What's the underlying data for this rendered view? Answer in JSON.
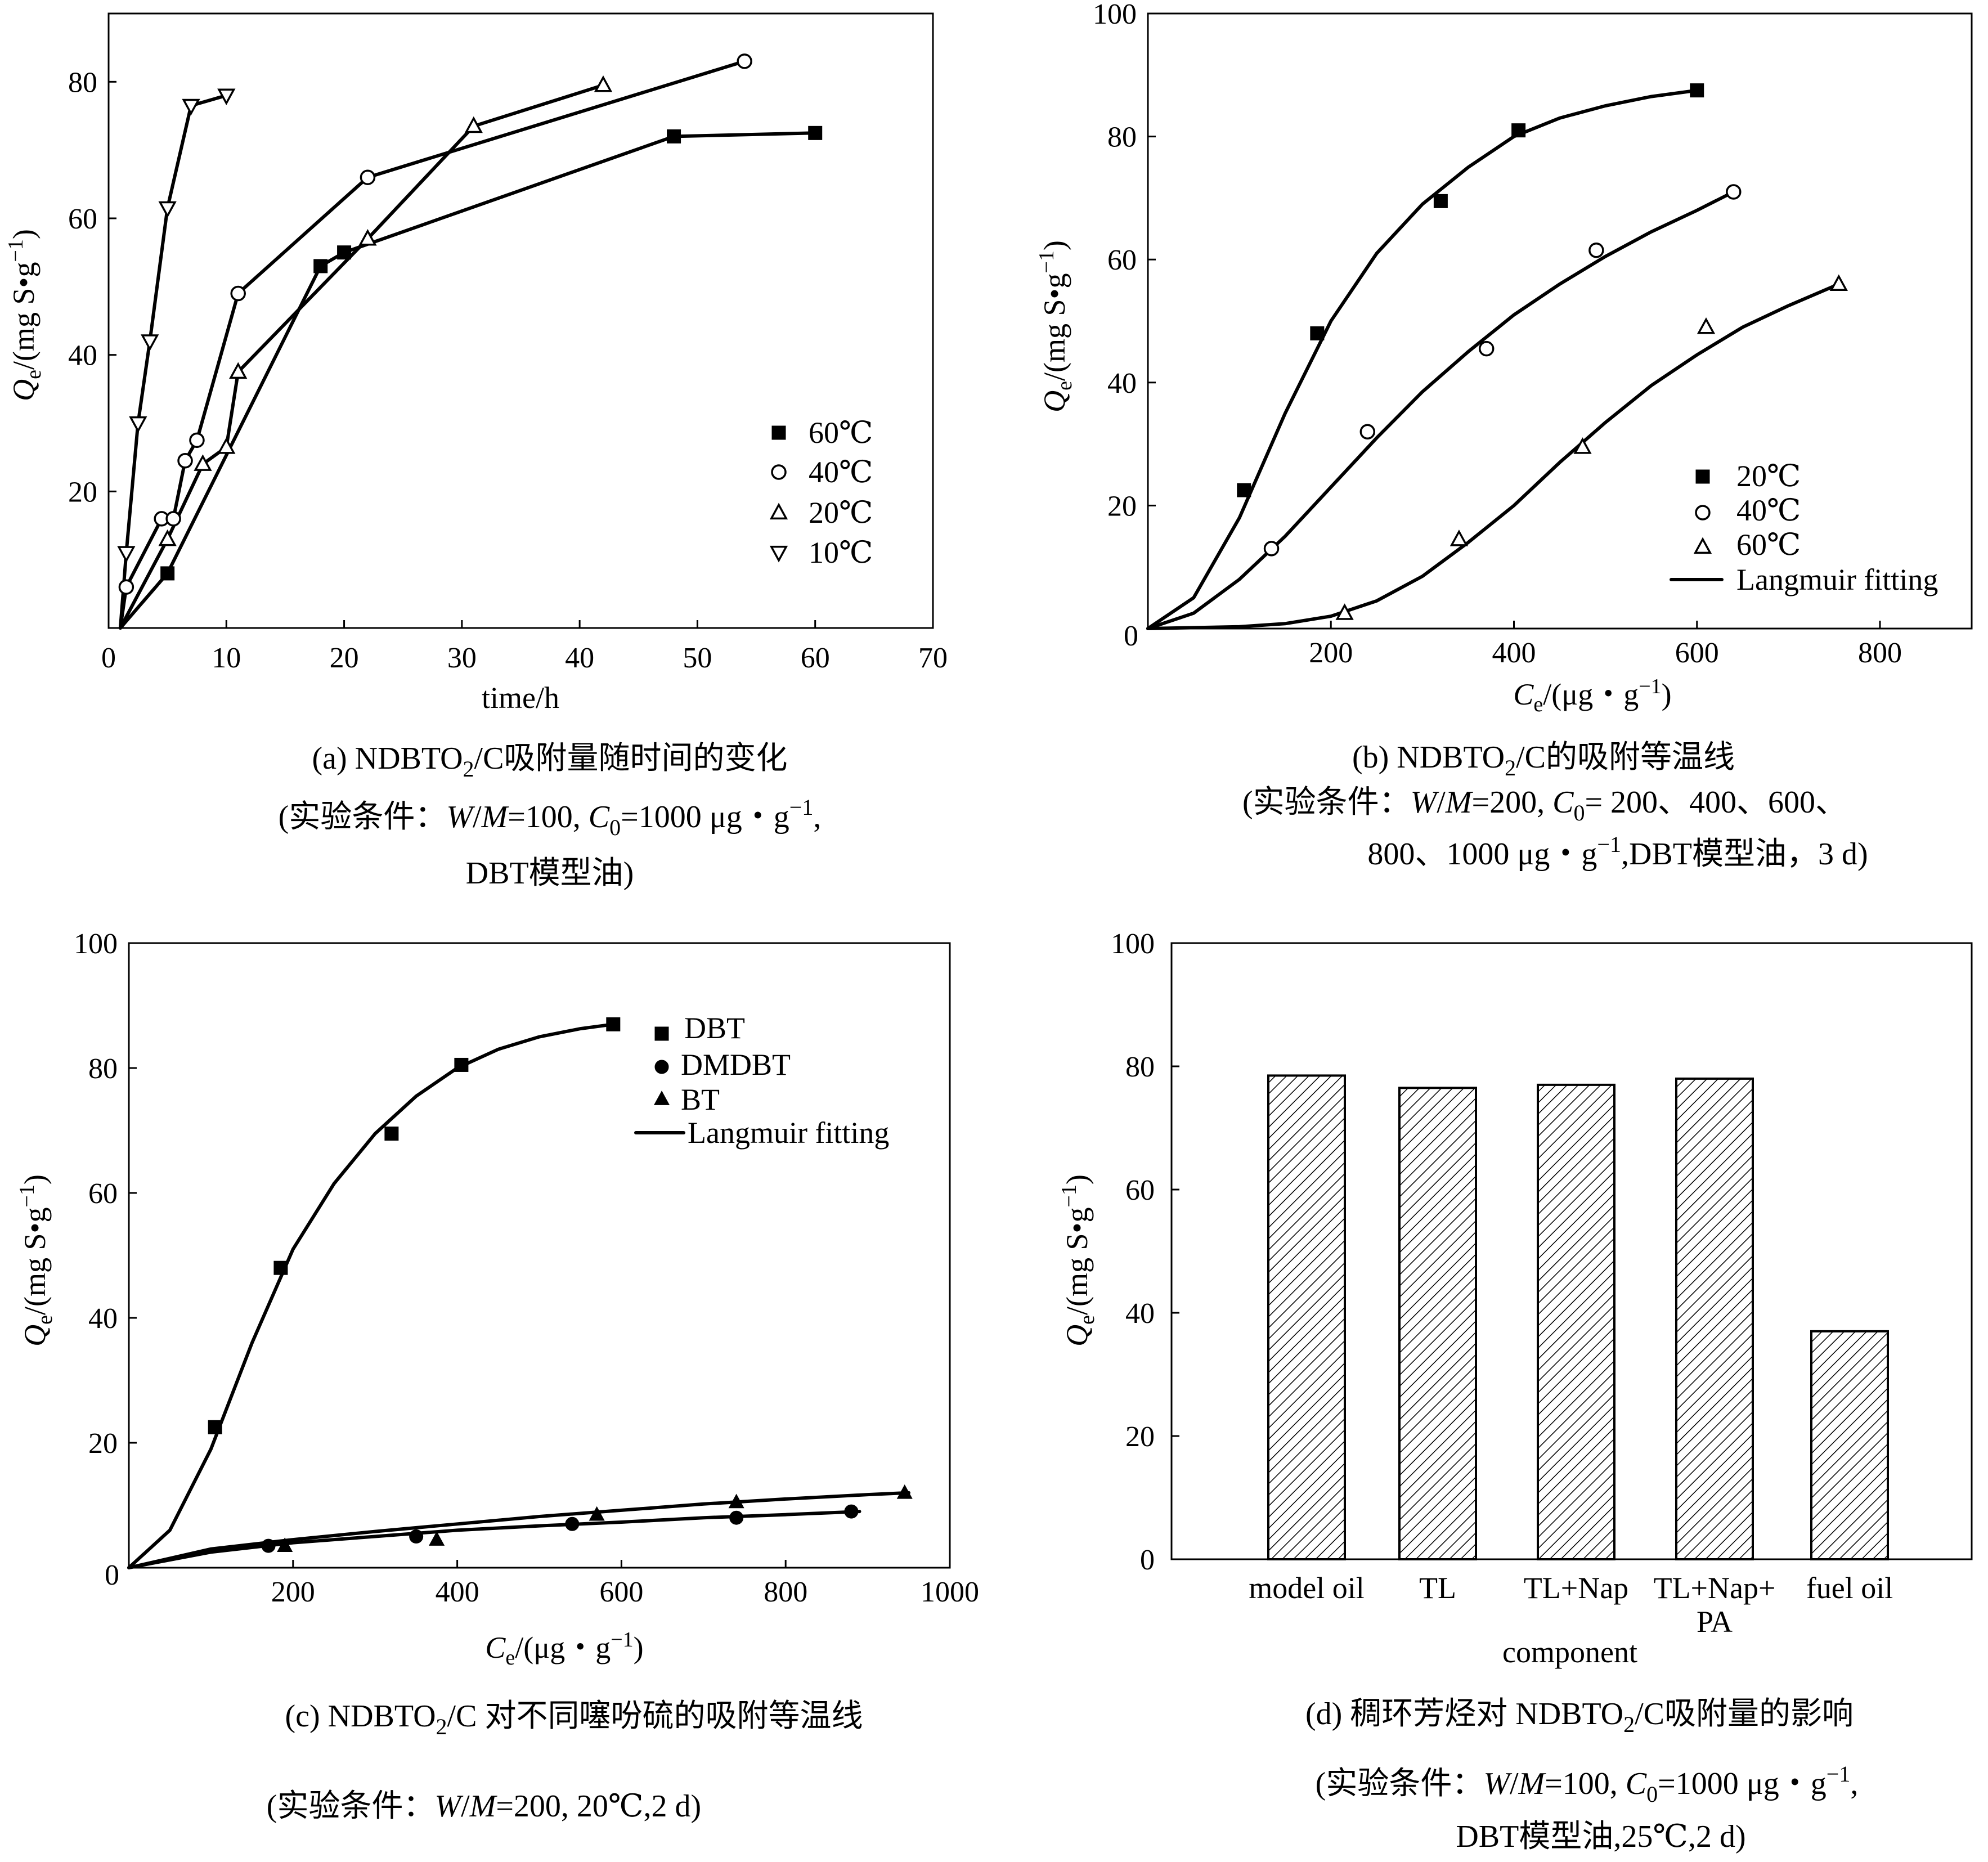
{
  "chart_data": [
    {
      "id": "a",
      "type": "line",
      "caption": {
        "prefix": "(a) NDBTO",
        "sub": "2",
        "suffix": "/C吸附量随时间的变化",
        "cond_line1": {
          "t1": "(实验条件：",
          "v1": "W",
          "t2": "/",
          "v2": "M",
          "t3": "=100, ",
          "v3": "C",
          "sub": "0",
          "t4": "=1000 μg・g",
          "sup": "−1",
          "t5": ","
        },
        "cond_line2": "DBT模型油)"
      },
      "xlabel": "time/h",
      "ylabel": {
        "sym": "Q",
        "sub": "e",
        "unit": "/(mg S•g",
        "sup": "−1",
        "close": ")"
      },
      "xlim": [
        0,
        70
      ],
      "ylim": [
        0,
        90
      ],
      "xticks": [
        "0",
        "10",
        "20",
        "30",
        "40",
        "50",
        "60",
        "70"
      ],
      "yticks": [
        "20",
        "40",
        "60",
        "80"
      ],
      "series": [
        {
          "name": "60℃",
          "marker": "square-filled",
          "x": [
            1,
            5,
            18,
            20,
            48,
            60
          ],
          "y": [
            0,
            8,
            53,
            55,
            72,
            72.5
          ]
        },
        {
          "name": "40℃",
          "marker": "circle-open",
          "x": [
            1,
            1.5,
            4.5,
            5.5,
            6.5,
            7.5,
            11,
            22,
            54
          ],
          "y": [
            0,
            6,
            16,
            16,
            24.5,
            27.5,
            49,
            66,
            83
          ]
        },
        {
          "name": "20℃",
          "marker": "triangle-up-open",
          "x": [
            1,
            5,
            8,
            10,
            11,
            22,
            31,
            42
          ],
          "y": [
            0,
            13,
            24,
            26.5,
            37.5,
            57,
            73.5,
            79.5
          ]
        },
        {
          "name": "10℃",
          "marker": "triangle-down-open",
          "x": [
            1,
            1.5,
            2.5,
            3.5,
            5,
            7,
            10
          ],
          "y": [
            0,
            11,
            30,
            42,
            61.5,
            76.5,
            78
          ]
        }
      ]
    },
    {
      "id": "b",
      "type": "scatter",
      "caption": {
        "prefix": "(b) NDBTO",
        "sub": "2",
        "suffix": "/C的吸附等温线",
        "cond_line1": {
          "t1": "(实验条件：",
          "v1": "W",
          "t2": "/",
          "v2": "M",
          "t3": "=200, ",
          "v3": "C",
          "sub": "0",
          "t4": "= 200、400、600、"
        },
        "cond_line2": {
          "t1": "800、1000 μg・g",
          "sup": "−1",
          "t2": ",DBT模型油，3 d)"
        }
      },
      "xlabel": {
        "sym": "C",
        "sub": "e",
        "unit": "/(μg・g",
        "sup": "−1",
        "close": ")"
      },
      "ylabel": {
        "sym": "Q",
        "sub": "e",
        "unit": "/(mg S•g",
        "sup": "−1",
        "close": ")"
      },
      "xlim": [
        0,
        900
      ],
      "ylim": [
        0,
        100
      ],
      "xticks": [
        "0",
        "200",
        "400",
        "600",
        "800"
      ],
      "yticks": [
        "20",
        "40",
        "60",
        "80",
        "100"
      ],
      "legend": {
        "fit_label": "Langmuir fitting"
      },
      "series": [
        {
          "name": "20℃",
          "marker": "square-filled",
          "x": [
            0,
            105,
            185,
            320,
            405,
            600
          ],
          "y": [
            0,
            22.5,
            48,
            69.5,
            81,
            87.5
          ],
          "fit_x": [
            0,
            50,
            100,
            150,
            200,
            250,
            300,
            350,
            400,
            450,
            500,
            550,
            600
          ],
          "fit_y": [
            0,
            5,
            18,
            35,
            50,
            61,
            69,
            75,
            80,
            83,
            85,
            86.5,
            87.5
          ]
        },
        {
          "name": "40℃",
          "marker": "circle-open",
          "x": [
            0,
            135,
            240,
            370,
            490,
            640
          ],
          "y": [
            0,
            13,
            32,
            45.5,
            61.5,
            71
          ],
          "fit_x": [
            0,
            50,
            100,
            150,
            200,
            250,
            300,
            350,
            400,
            450,
            500,
            550,
            600,
            640
          ],
          "fit_y": [
            0,
            2.5,
            8,
            15,
            23,
            31,
            38.5,
            45,
            51,
            56,
            60.5,
            64.5,
            68,
            71
          ]
        },
        {
          "name": "60℃",
          "marker": "triangle-up-open",
          "x": [
            0,
            215,
            340,
            475,
            610,
            755
          ],
          "y": [
            0,
            2.5,
            14.5,
            29.5,
            49,
            56
          ],
          "fit_x": [
            0,
            100,
            150,
            200,
            250,
            300,
            350,
            400,
            450,
            500,
            550,
            600,
            650,
            700,
            755
          ],
          "fit_y": [
            0,
            0.3,
            0.8,
            2,
            4.5,
            8.5,
            14,
            20,
            27,
            33.5,
            39.5,
            44.5,
            49,
            52.5,
            56
          ]
        }
      ]
    },
    {
      "id": "c",
      "type": "scatter",
      "caption": {
        "prefix": "(c) NDBTO",
        "sub": "2",
        "suffix": "/C 对不同噻吩硫的吸附等温线",
        "cond_line1": {
          "t1": "(实验条件：",
          "v1": "W",
          "t2": "/",
          "v2": "M",
          "t3": "=200, 20℃,2 d)"
        }
      },
      "xlabel": {
        "sym": "C",
        "sub": "e",
        "unit": "/(μg・g",
        "sup": "−1",
        "close": ")"
      },
      "ylabel": {
        "sym": "Q",
        "sub": "e",
        "unit": "/(mg S•g",
        "sup": "−1",
        "close": ")"
      },
      "xlim": [
        0,
        1000
      ],
      "ylim": [
        0,
        100
      ],
      "xticks": [
        "0",
        "200",
        "400",
        "600",
        "800",
        "1000"
      ],
      "yticks": [
        "20",
        "40",
        "60",
        "80",
        "100"
      ],
      "legend": {
        "fit_label": "Langmuir fitting"
      },
      "series": [
        {
          "name": "DBT",
          "marker": "square-filled",
          "x": [
            105,
            185,
            320,
            405,
            590
          ],
          "y": [
            22.5,
            48,
            69.5,
            80.5,
            87
          ],
          "fit_x": [
            0,
            50,
            100,
            150,
            200,
            250,
            300,
            350,
            400,
            450,
            500,
            550,
            590
          ],
          "fit_y": [
            0,
            6,
            19,
            36,
            51,
            61.5,
            69.5,
            75.5,
            80,
            83,
            85,
            86.3,
            87
          ]
        },
        {
          "name": "DMDBT",
          "marker": "circle-filled",
          "x": [
            170,
            350,
            540,
            740,
            880
          ],
          "y": [
            3.5,
            5,
            7,
            8,
            9
          ],
          "fit_x": [
            0,
            100,
            200,
            300,
            400,
            500,
            600,
            700,
            800,
            890
          ],
          "fit_y": [
            0,
            2.5,
            4,
            5,
            6,
            6.7,
            7.3,
            8,
            8.5,
            9
          ]
        },
        {
          "name": "BT",
          "marker": "triangle-up-filled",
          "x": [
            190,
            375,
            570,
            740,
            945
          ],
          "y": [
            3.5,
            4.5,
            8.5,
            10.5,
            12
          ],
          "fit_x": [
            0,
            100,
            200,
            300,
            400,
            500,
            600,
            700,
            800,
            900,
            950
          ],
          "fit_y": [
            0,
            3,
            4.5,
            5.8,
            7,
            8.2,
            9.2,
            10.2,
            11,
            11.7,
            12
          ]
        }
      ]
    },
    {
      "id": "d",
      "type": "bar",
      "caption": {
        "prefix": "(d) 稠环芳烃对 NDBTO",
        "sub": "2",
        "suffix": "/C吸附量的影响",
        "cond_line1": {
          "t1": "(实验条件：",
          "v1": "W",
          "t2": "/",
          "v2": "M",
          "t3": "=100, ",
          "v3": "C",
          "sub": "0",
          "t4": "=1000 μg・g",
          "sup": "−1",
          "t5": ","
        },
        "cond_line2": "DBT模型油,25℃,2 d)"
      },
      "xlabel": "component",
      "ylabel": {
        "sym": "Q",
        "sub": "e",
        "unit": "/(mg S•g",
        "sup": "−1",
        "close": ")"
      },
      "ylim": [
        0,
        100
      ],
      "yticks": [
        "0",
        "20",
        "40",
        "60",
        "80",
        "100"
      ],
      "categories": [
        [
          "model oil"
        ],
        [
          "TL"
        ],
        [
          "TL+Nap"
        ],
        [
          "TL+Nap+",
          "PA"
        ],
        [
          "fuel oil"
        ]
      ],
      "values": [
        78.5,
        76.5,
        77,
        78,
        37
      ]
    }
  ]
}
